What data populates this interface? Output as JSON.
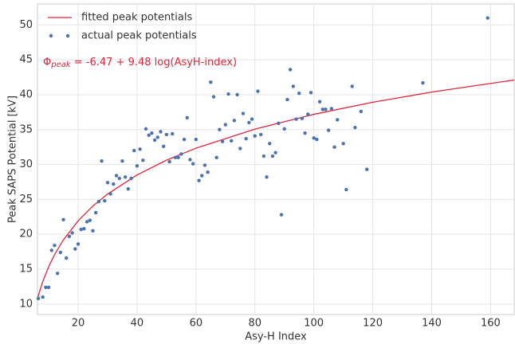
{
  "chart_data": {
    "type": "scatter",
    "xlabel": "Asy-H Index",
    "ylabel": "Peak SAPS Potential [kV]",
    "annotation": {
      "symbol": "Φ",
      "subscript": "peak",
      "text": " = -6.47 + 9.48 log(AsyH-index)",
      "color": "#e0263a"
    },
    "xlim": [
      6.2,
      168
    ],
    "ylim": [
      8.5,
      53
    ],
    "xticks": [
      20,
      40,
      60,
      80,
      100,
      120,
      140,
      160
    ],
    "yticks": [
      10,
      15,
      20,
      25,
      30,
      35,
      40,
      45,
      50
    ],
    "grid": true,
    "legend": "upper left",
    "series": [
      {
        "name": "fitted peak potentials",
        "type": "line",
        "color": "#e0263a",
        "x": [
          6.2,
          8,
          10,
          12,
          15,
          20,
          25,
          30,
          40,
          50,
          60,
          80,
          100,
          120,
          140,
          168
        ],
        "values": [
          10.83,
          13.24,
          15.36,
          17.09,
          19.2,
          21.93,
          24.05,
          25.77,
          28.5,
          30.62,
          32.34,
          35.07,
          37.19,
          38.92,
          40.38,
          42.11
        ]
      },
      {
        "name": "actual peak potentials",
        "type": "scatter",
        "color": "#4c72b0",
        "x": [
          6.5,
          8,
          9,
          10,
          11,
          12,
          13,
          14,
          15,
          16,
          17,
          18,
          19,
          20,
          21,
          22,
          23,
          24,
          25,
          26,
          27,
          28,
          29,
          30,
          31,
          32,
          33,
          34,
          35,
          36,
          37,
          38,
          39,
          40,
          41,
          42,
          43,
          44,
          45,
          46,
          47,
          48,
          49,
          50,
          51,
          52,
          53,
          54,
          55,
          56,
          57,
          58,
          59,
          60,
          61,
          62,
          63,
          64,
          65,
          66,
          67,
          68,
          69,
          70,
          71,
          72,
          73,
          74,
          75,
          76,
          77,
          78,
          79,
          80,
          81,
          82,
          83,
          84,
          85,
          86,
          87,
          88,
          89,
          90,
          91,
          92,
          93,
          94,
          95,
          96,
          97,
          98,
          99,
          100,
          101,
          102,
          103,
          104,
          105,
          106,
          107,
          108,
          110,
          111,
          113,
          114,
          116,
          118,
          137,
          159
        ],
        "values": [
          10.8,
          11,
          12.4,
          12.4,
          17.7,
          18.4,
          14.4,
          17.4,
          22.1,
          16.6,
          19.7,
          20.2,
          17.9,
          18.6,
          20.7,
          20.8,
          21.8,
          22,
          20.5,
          23.1,
          24.7,
          30.5,
          24.8,
          27.4,
          25.8,
          27.2,
          28.4,
          28,
          30.5,
          28.2,
          26.5,
          28,
          32,
          29.8,
          32.2,
          30.6,
          35.1,
          34.2,
          34.5,
          33.5,
          33.9,
          34.7,
          32.6,
          34.3,
          30.4,
          34.4,
          31,
          31,
          31.5,
          33.6,
          36.7,
          30.7,
          30.1,
          33.6,
          27.7,
          28.4,
          29.9,
          28.9,
          41.8,
          39.7,
          31,
          35,
          33.3,
          35.7,
          40.1,
          33.4,
          36.3,
          40,
          32.3,
          37.3,
          33.7,
          36,
          36.5,
          34.1,
          40.5,
          34.3,
          31.2,
          28.2,
          33,
          31.2,
          31.7,
          35.9,
          22.8,
          35.1,
          39.3,
          43.6,
          41.2,
          36.5,
          40.2,
          36.6,
          34.5,
          37.2,
          40.3,
          33.8,
          33.6,
          39,
          37.9,
          37.9,
          34.9,
          38,
          32.5,
          36.4,
          33,
          26.4,
          41.2,
          35.3,
          37.6,
          29.3,
          41.7,
          51
        ]
      }
    ]
  }
}
